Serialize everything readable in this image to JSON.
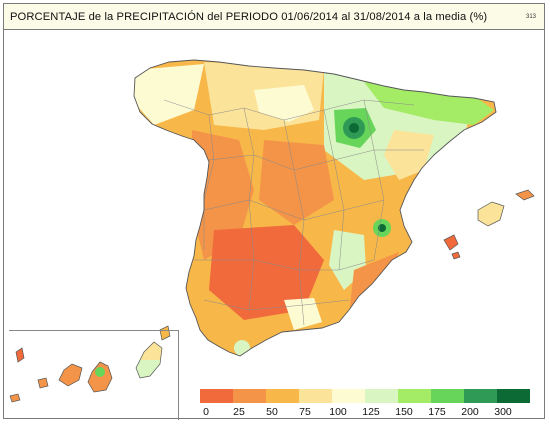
{
  "header": {
    "title": "PORCENTAJE de la PRECIPITACIÓN del PERIODO 01/06/2014 al 31/08/2014 a la media (%)",
    "code": "313"
  },
  "map": {
    "region": "Spain",
    "variable": "precipitation percentage of normal",
    "colors": {
      "c0": "#f06a3c",
      "c25": "#f39448",
      "c50": "#f8b849",
      "c75": "#fbe39a",
      "c100": "#fdfbd2",
      "c125": "#d9f5c2",
      "c150": "#a4ec66",
      "c175": "#66d55a",
      "c200": "#2f9a56",
      "c300": "#0c6a35",
      "border": "#8a8a8a",
      "coast": "#555555"
    }
  },
  "legend": {
    "labels": [
      "0",
      "25",
      "50",
      "75",
      "100",
      "125",
      "150",
      "175",
      "200",
      "300"
    ],
    "colors": [
      "#f06a3c",
      "#f39448",
      "#f8b849",
      "#fbe39a",
      "#fdfbd2",
      "#d9f5c2",
      "#a4ec66",
      "#66d55a",
      "#2f9a56",
      "#0c6a35"
    ]
  }
}
